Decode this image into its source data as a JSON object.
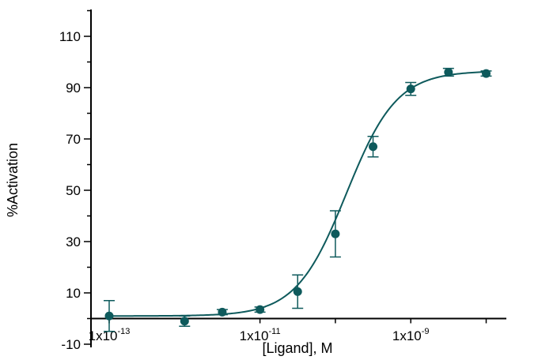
{
  "chart_data": {
    "type": "scatter",
    "title": "",
    "xlabel": "[Ligand], M",
    "ylabel": "%Activation",
    "x_scale": "log",
    "xlim": [
      5e-14,
      3e-08
    ],
    "ylim": [
      -10,
      120
    ],
    "y_ticks": [
      -10,
      10,
      30,
      50,
      70,
      90,
      110
    ],
    "x_ticks": [
      {
        "value": 1e-13,
        "label_base": "1x10",
        "label_exp": "-13"
      },
      {
        "value": 1e-11,
        "label_base": "1x10",
        "label_exp": "-11"
      },
      {
        "value": 1e-09,
        "label_base": "1x10",
        "label_exp": "-9"
      }
    ],
    "grid": false,
    "legend": "none",
    "color": "#0e5a5c",
    "points": [
      {
        "x": 1e-13,
        "y": 1,
        "err": 6
      },
      {
        "x": 1e-12,
        "y": -1,
        "err": 2
      },
      {
        "x": 3.16e-12,
        "y": 2.5,
        "err": 1
      },
      {
        "x": 1e-11,
        "y": 3.5,
        "err": 1
      },
      {
        "x": 3.16e-11,
        "y": 10.5,
        "err": 6.5
      },
      {
        "x": 1e-10,
        "y": 33,
        "err": 9
      },
      {
        "x": 3.16e-10,
        "y": 67,
        "err": 4
      },
      {
        "x": 1e-09,
        "y": 89.5,
        "err": 2.5
      },
      {
        "x": 3.16e-09,
        "y": 96,
        "err": 1.5
      },
      {
        "x": 1e-08,
        "y": 95.5,
        "err": 1
      }
    ],
    "fit_curve": {
      "model": "four-parameter logistic",
      "bottom": 1,
      "top": 96.5,
      "ec50": 1.4e-10,
      "hill_slope": 1.3
    }
  }
}
